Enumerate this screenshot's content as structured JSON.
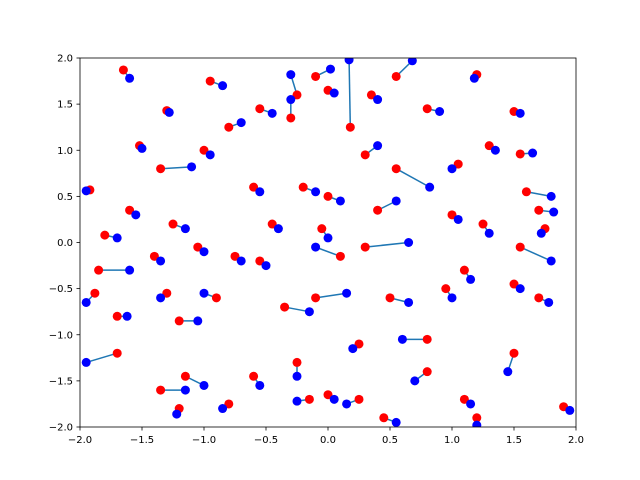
{
  "chart_data": {
    "type": "scatter",
    "xlim": [
      -2,
      2
    ],
    "ylim": [
      -2,
      2
    ],
    "xticks": [
      {
        "value": -2,
        "label": "−2.0"
      },
      {
        "value": -1.5,
        "label": "−1.5"
      },
      {
        "value": -1,
        "label": "−1.0"
      },
      {
        "value": -0.5,
        "label": "−0.5"
      },
      {
        "value": 0,
        "label": "0.0"
      },
      {
        "value": 0.5,
        "label": "0.5"
      },
      {
        "value": 1,
        "label": "1.0"
      },
      {
        "value": 1.5,
        "label": "1.5"
      },
      {
        "value": 2,
        "label": "2.0"
      }
    ],
    "yticks": [
      {
        "value": -2,
        "label": "−2.0"
      },
      {
        "value": -1.5,
        "label": "−1.5"
      },
      {
        "value": -1,
        "label": "−1.0"
      },
      {
        "value": -0.5,
        "label": "−0.5"
      },
      {
        "value": 0,
        "label": "0.0"
      },
      {
        "value": 0.5,
        "label": "0.5"
      },
      {
        "value": 1,
        "label": "1.0"
      },
      {
        "value": 1.5,
        "label": "1.5"
      },
      {
        "value": 2,
        "label": "2.0"
      }
    ],
    "line_color": "#1f77b4",
    "series": [
      {
        "color": "#ff0000",
        "x": [
          -1.65,
          -1.52,
          -1.92,
          -1.8,
          -1.85,
          -1.88,
          -1.7,
          -1.7,
          -1.3,
          -1.35,
          -1.4,
          -1.3,
          -1.2,
          -1.35,
          -1.15,
          -1.05,
          -0.95,
          -0.8,
          -0.6,
          -0.55,
          -0.3,
          -0.25,
          -0.1,
          0.0,
          0.18,
          0.55,
          0.35,
          0.8,
          1.2,
          1.5,
          1.3,
          1.55,
          1.6,
          1.7,
          1.75,
          1.55,
          1.5,
          1.7,
          1.5,
          1.2,
          1.9,
          1.1,
          0.8,
          0.45,
          0.25,
          -0.15,
          0.0,
          0.25,
          0.5,
          0.8,
          0.95,
          0.55,
          0.3,
          1.0,
          0.4,
          0.0,
          -0.2,
          -0.45,
          -0.75,
          -0.35,
          -0.1,
          -0.9,
          -1.2,
          -0.25,
          0.1,
          -0.6,
          -1.0,
          -0.8,
          1.1,
          1.05,
          1.25,
          0.3,
          -0.55,
          -0.05,
          -1.6,
          -1.25
        ],
        "values": [
          1.87,
          1.05,
          0.57,
          0.08,
          -0.3,
          -0.55,
          -1.2,
          -0.8,
          1.43,
          0.8,
          -0.15,
          -0.55,
          -1.8,
          -1.6,
          -1.45,
          -0.05,
          1.75,
          -1.75,
          -1.45,
          1.45,
          1.35,
          1.6,
          1.8,
          1.65,
          1.25,
          1.8,
          1.6,
          1.45,
          1.82,
          1.42,
          1.05,
          0.96,
          0.55,
          0.35,
          0.15,
          -0.05,
          -0.45,
          -0.6,
          -1.2,
          -1.9,
          -1.78,
          -1.7,
          -1.4,
          -1.9,
          -1.7,
          -1.7,
          -1.65,
          -1.1,
          -0.6,
          -1.05,
          -0.5,
          0.8,
          -0.05,
          0.3,
          0.35,
          0.5,
          0.6,
          0.2,
          -0.15,
          -0.7,
          -0.6,
          -0.6,
          -0.85,
          -1.3,
          -0.15,
          0.6,
          1.0,
          1.25,
          -0.3,
          0.85,
          0.2,
          0.95,
          -0.2,
          0.15,
          0.35,
          0.2
        ]
      },
      {
        "color": "#0000ff",
        "x": [
          -1.6,
          -1.5,
          -1.95,
          -1.7,
          -1.6,
          -1.95,
          -1.95,
          -1.62,
          -1.28,
          -1.1,
          -1.35,
          -1.35,
          -1.22,
          -1.15,
          -1.0,
          -1.0,
          -0.85,
          -0.85,
          -0.55,
          -0.45,
          -0.3,
          -0.3,
          0.02,
          0.05,
          0.17,
          0.68,
          0.4,
          0.9,
          1.18,
          1.55,
          1.35,
          1.65,
          1.8,
          1.82,
          1.72,
          1.8,
          1.55,
          1.78,
          1.45,
          1.2,
          1.95,
          1.15,
          0.7,
          0.55,
          0.15,
          -0.25,
          0.05,
          0.2,
          0.65,
          0.6,
          1.0,
          0.82,
          0.65,
          1.05,
          0.55,
          0.1,
          -0.1,
          -0.4,
          -0.7,
          -0.15,
          0.15,
          -1.0,
          -1.05,
          -0.25,
          -0.1,
          -0.55,
          -0.95,
          -0.7,
          1.15,
          1.0,
          1.3,
          0.4,
          -0.5,
          0.0,
          -1.55,
          -1.15
        ],
        "values": [
          1.78,
          1.02,
          0.56,
          0.05,
          -0.3,
          -0.65,
          -1.3,
          -0.8,
          1.41,
          0.82,
          -0.2,
          -0.6,
          -1.86,
          -1.6,
          -1.55,
          -0.1,
          1.7,
          -1.8,
          -1.55,
          1.4,
          1.55,
          1.82,
          1.88,
          1.62,
          1.98,
          1.97,
          1.55,
          1.42,
          1.78,
          1.4,
          1.0,
          0.97,
          0.5,
          0.33,
          0.1,
          -0.2,
          -0.5,
          -0.65,
          -1.4,
          -1.98,
          -1.82,
          -1.75,
          -1.5,
          -1.95,
          -1.75,
          -1.72,
          -1.7,
          -1.15,
          -0.65,
          -1.05,
          -0.6,
          0.6,
          0.0,
          0.25,
          0.45,
          0.45,
          0.55,
          0.15,
          -0.2,
          -0.75,
          -0.55,
          -0.55,
          -0.85,
          -1.45,
          -0.05,
          0.55,
          0.95,
          1.3,
          -0.4,
          0.8,
          0.1,
          1.05,
          -0.25,
          0.05,
          0.3,
          0.15
        ]
      }
    ]
  }
}
